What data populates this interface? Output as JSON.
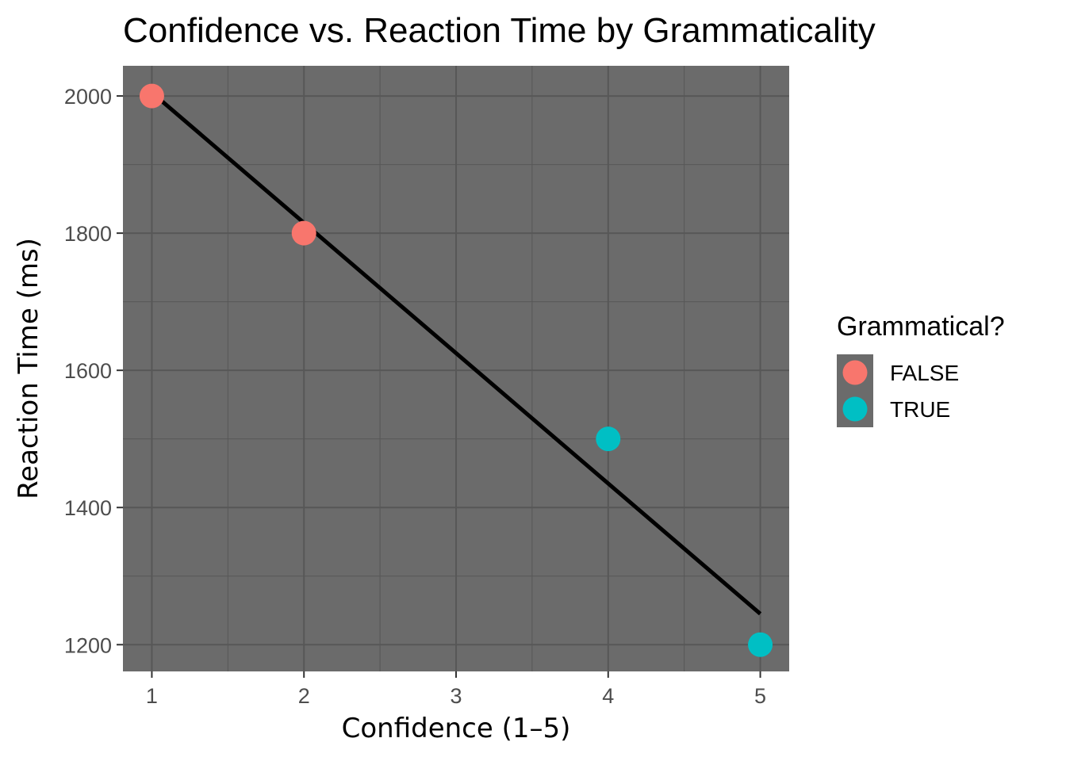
{
  "chart_data": {
    "type": "scatter",
    "title": "Confidence vs. Reaction Time by Grammaticality",
    "xlabel": "Confidence (1–5)",
    "ylabel": "Reaction Time (ms)",
    "xlim": [
      0.81,
      5.19
    ],
    "ylim": [
      1161,
      2044
    ],
    "x_ticks": [
      "1",
      "2",
      "3",
      "4",
      "5"
    ],
    "y_ticks": [
      "1200",
      "1400",
      "1600",
      "1800",
      "2000"
    ],
    "grid": true,
    "panel_color": "#6b6b6b",
    "grid_color": "#575757",
    "series": [
      {
        "name": "FALSE",
        "color": "#F8766D",
        "points": [
          {
            "x": 1,
            "y": 2000
          },
          {
            "x": 2,
            "y": 1800
          }
        ]
      },
      {
        "name": "TRUE",
        "color": "#00BFC4",
        "points": [
          {
            "x": 4,
            "y": 1500
          },
          {
            "x": 5,
            "y": 1200
          }
        ]
      }
    ],
    "trend_line": {
      "color": "#000000",
      "from": {
        "x": 1,
        "y": 2005
      },
      "to": {
        "x": 5,
        "y": 1245
      }
    },
    "legend": {
      "title": "Grammatical?",
      "position": "right"
    }
  }
}
